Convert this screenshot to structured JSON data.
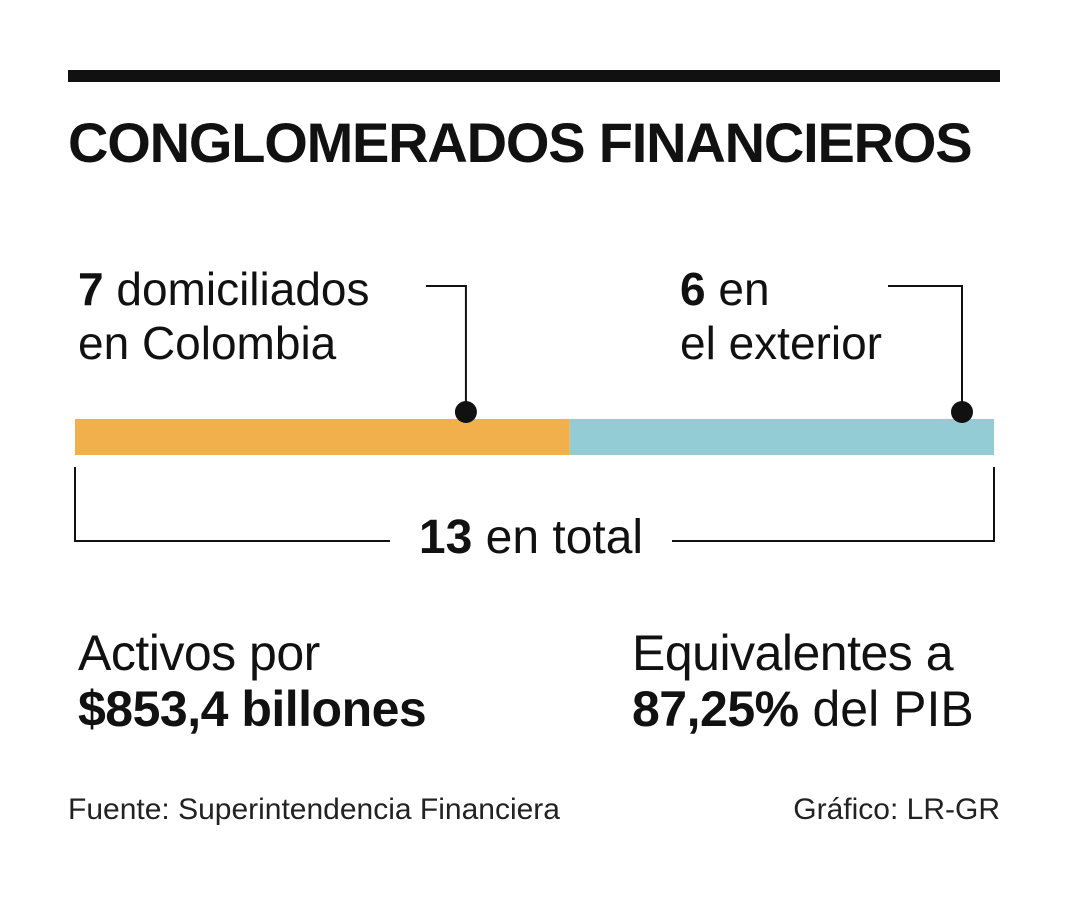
{
  "title": "CONGLOMERADOS FINANCIEROS",
  "chart_data": {
    "type": "bar",
    "orientation": "horizontal-stacked",
    "categories": [
      "domiciliados en Colombia",
      "en el exterior"
    ],
    "series": [
      {
        "name": "domiciliados en Colombia",
        "value": 7,
        "color": "#F2B04C"
      },
      {
        "name": "en el exterior",
        "value": 6,
        "color": "#93CCD5"
      }
    ],
    "total": 13
  },
  "labels": {
    "left": {
      "number": "7",
      "text1": "domiciliados",
      "text2": "en Colombia"
    },
    "right": {
      "number": "6",
      "text1": "en",
      "text2": "el exterior"
    },
    "total": {
      "number": "13",
      "text": "en total"
    }
  },
  "stats": {
    "assets": {
      "line1": "Activos por",
      "value": "$853,4 billones"
    },
    "gdp": {
      "line1": "Equivalentes a",
      "value": "87,25%",
      "suffix": "del PIB"
    }
  },
  "footer": {
    "source": "Fuente: Superintendencia Financiera",
    "credit": "Gráfico: LR-GR"
  },
  "colors": {
    "text": "#111111",
    "colombia": "#F2B04C",
    "exterior": "#93CCD5"
  }
}
